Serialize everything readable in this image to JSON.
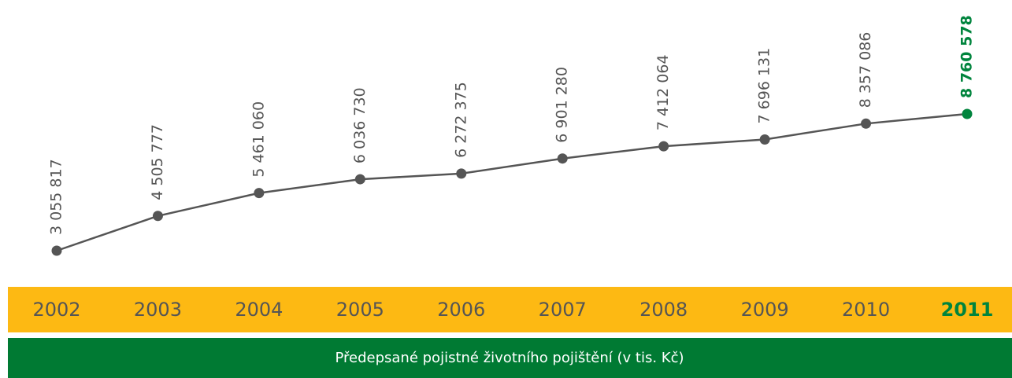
{
  "chart_data": {
    "type": "line",
    "title": "Předepsané pojistné životního pojištění (v tis. Kč)",
    "categories": [
      "2002",
      "2003",
      "2004",
      "2005",
      "2006",
      "2007",
      "2008",
      "2009",
      "2010",
      "2011"
    ],
    "series": [
      {
        "name": "Předepsané pojistné životního pojištění (v tis. Kč)",
        "color": "#555555",
        "point_colors": [
          "#555555",
          "#555555",
          "#555555",
          "#555555",
          "#555555",
          "#555555",
          "#555555",
          "#555555",
          "#555555",
          "#00843d"
        ],
        "values": [
          3055817,
          4505777,
          5461060,
          6036730,
          6272375,
          6901280,
          7412064,
          7696131,
          8357086,
          8760578
        ],
        "value_labels": [
          "3 055 817",
          "4 505 777",
          "5 461 060",
          "6 036 730",
          "6 272 375",
          "6 901 280",
          "7 412 064",
          "7 696 131",
          "8 357 086",
          "8 760 578"
        ]
      }
    ],
    "band_color": "#fdb913",
    "title_band_color": "#007a33"
  }
}
